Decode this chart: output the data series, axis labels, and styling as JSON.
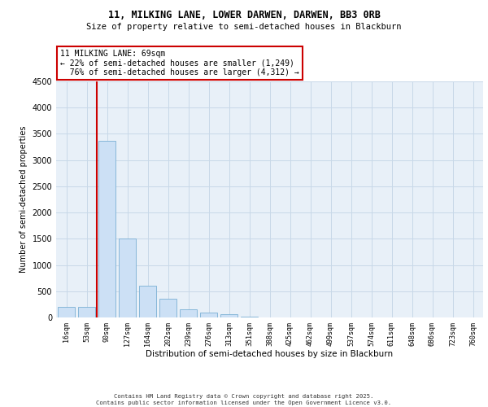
{
  "title1": "11, MILKING LANE, LOWER DARWEN, DARWEN, BB3 0RB",
  "title2": "Size of property relative to semi-detached houses in Blackburn",
  "xlabel": "Distribution of semi-detached houses by size in Blackburn",
  "ylabel": "Number of semi-detached properties",
  "categories": [
    "16sqm",
    "53sqm",
    "90sqm",
    "127sqm",
    "164sqm",
    "202sqm",
    "239sqm",
    "276sqm",
    "313sqm",
    "351sqm",
    "388sqm",
    "425sqm",
    "462sqm",
    "499sqm",
    "537sqm",
    "574sqm",
    "611sqm",
    "648sqm",
    "686sqm",
    "723sqm",
    "760sqm"
  ],
  "values": [
    200,
    200,
    3370,
    1500,
    600,
    360,
    150,
    100,
    55,
    20,
    5,
    0,
    0,
    0,
    0,
    0,
    0,
    0,
    0,
    0,
    0
  ],
  "bar_color": "#cce0f5",
  "bar_edge_color": "#7aafd4",
  "grid_color": "#c8d8e8",
  "bg_color": "#e8f0f8",
  "property_line_x": 1.5,
  "property_line_color": "#cc0000",
  "annotation_text": "11 MILKING LANE: 69sqm\n← 22% of semi-detached houses are smaller (1,249)\n  76% of semi-detached houses are larger (4,312) →",
  "annotation_box_color": "#cc0000",
  "footer": "Contains HM Land Registry data © Crown copyright and database right 2025.\nContains public sector information licensed under the Open Government Licence v3.0.",
  "ylim": [
    0,
    4500
  ],
  "yticks": [
    0,
    500,
    1000,
    1500,
    2000,
    2500,
    3000,
    3500,
    4000,
    4500
  ]
}
